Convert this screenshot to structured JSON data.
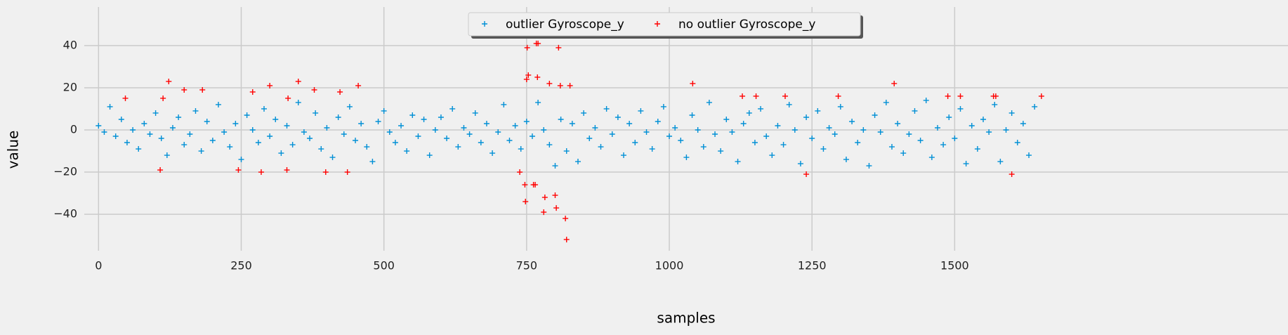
{
  "chart_data": {
    "type": "scatter",
    "xlabel": "samples",
    "ylabel": "value",
    "xlim": [
      -25,
      2084
    ],
    "ylim": [
      -57.3,
      58.3
    ],
    "xticks": [
      0,
      250,
      500,
      750,
      1000,
      1250,
      1500
    ],
    "yticks": [
      {
        "value": -40,
        "label": "−40"
      },
      {
        "value": -20,
        "label": "−20"
      },
      0,
      20,
      40
    ],
    "grid": true,
    "legend": "upper center",
    "series": [
      {
        "name": "outlier Gyroscope_y",
        "color": "#008fd5",
        "x": [
          0,
          10,
          20,
          30,
          40,
          50,
          60,
          70,
          80,
          90,
          100,
          110,
          120,
          130,
          140,
          150,
          160,
          170,
          180,
          190,
          200,
          210,
          220,
          230,
          240,
          250,
          260,
          270,
          280,
          290,
          300,
          310,
          320,
          330,
          340,
          350,
          360,
          370,
          380,
          390,
          400,
          410,
          420,
          430,
          440,
          450,
          460,
          470,
          480,
          490,
          500,
          510,
          520,
          530,
          540,
          550,
          560,
          570,
          580,
          590,
          600,
          610,
          620,
          630,
          640,
          650,
          660,
          670,
          680,
          690,
          700,
          710,
          720,
          730,
          740,
          750,
          760,
          770,
          780,
          790,
          800,
          810,
          820,
          830,
          840,
          850,
          860,
          870,
          880,
          890,
          900,
          910,
          920,
          930,
          940,
          950,
          960,
          970,
          980,
          990,
          1000,
          1010,
          1020,
          1030,
          1040,
          1050,
          1060,
          1070,
          1080,
          1090,
          1100,
          1110,
          1120,
          1130,
          1140,
          1150,
          1160,
          1170,
          1180,
          1190,
          1200,
          1210,
          1220,
          1230,
          1240,
          1250,
          1260,
          1270,
          1280,
          1290,
          1300,
          1310,
          1320,
          1330,
          1340,
          1350,
          1360,
          1370,
          1380,
          1390,
          1400,
          1410,
          1420,
          1430,
          1440,
          1450,
          1460,
          1470,
          1480,
          1490,
          1500,
          1510,
          1520,
          1530,
          1540,
          1550,
          1560,
          1570,
          1580,
          1590,
          1600,
          1610,
          1620,
          1630,
          1640
        ],
        "values": [
          2,
          -1,
          11,
          -3,
          5,
          -6,
          0,
          -9,
          3,
          -2,
          8,
          -4,
          -12,
          1,
          6,
          -7,
          -2,
          9,
          -10,
          4,
          -5,
          12,
          -1,
          -8,
          3,
          -14,
          7,
          0,
          -6,
          10,
          -3,
          5,
          -11,
          2,
          -7,
          13,
          -1,
          -4,
          8,
          -9,
          1,
          -13,
          6,
          -2,
          11,
          -5,
          3,
          -8,
          -15,
          4,
          9,
          -1,
          -6,
          2,
          -10,
          7,
          -3,
          5,
          -12,
          0,
          6,
          -4,
          10,
          -8,
          1,
          -2,
          8,
          -6,
          3,
          -11,
          -1,
          12,
          -5,
          2,
          -9,
          4,
          -3,
          13,
          0,
          -7,
          -17,
          5,
          -10,
          3,
          -15,
          8,
          -4,
          1,
          -8,
          10,
          -2,
          6,
          -12,
          3,
          -6,
          9,
          -1,
          -9,
          4,
          11,
          -3,
          1,
          -5,
          -13,
          7,
          0,
          -8,
          13,
          -2,
          -10,
          5,
          -1,
          -15,
          3,
          8,
          -6,
          10,
          -3,
          -12,
          2,
          -7,
          12,
          0,
          -16,
          6,
          -4,
          9,
          -9,
          1,
          -2,
          11,
          -14,
          4,
          -6,
          0,
          -17,
          7,
          -1,
          13,
          -8,
          3,
          -11,
          -2,
          9,
          -5,
          14,
          -13,
          1,
          -7,
          6,
          -4,
          10,
          -16,
          2,
          -9,
          5,
          -1,
          12,
          -15,
          0,
          8,
          -6,
          3,
          -12,
          11
        ]
      },
      {
        "name": "no outlier Gyroscope_y",
        "color": "#ff0000",
        "x": [
          47,
          108,
          113,
          123,
          150,
          182,
          245,
          270,
          285,
          300,
          330,
          332,
          350,
          378,
          398,
          423,
          436,
          455,
          738,
          747,
          748,
          750,
          751,
          753,
          762,
          765,
          767,
          769,
          770,
          780,
          782,
          789,
          790,
          800,
          802,
          806,
          809,
          818,
          820,
          826,
          1041,
          1128,
          1152,
          1203,
          1240,
          1296,
          1394,
          1488,
          1510,
          1568,
          1572,
          1600,
          1652
        ],
        "values": [
          15,
          -19,
          15,
          23,
          19,
          19,
          -19,
          18,
          -20,
          21,
          -19,
          15,
          23,
          19,
          -20,
          18,
          -20,
          21,
          -20,
          -26,
          -34,
          24,
          39,
          26,
          -26,
          -26,
          41,
          25,
          41,
          -39,
          -32,
          45,
          22,
          -31,
          -37,
          39,
          21,
          -42,
          -52,
          21,
          22,
          16,
          16,
          16,
          -21,
          16,
          22,
          16,
          16,
          16,
          16,
          -21,
          16
        ]
      }
    ]
  }
}
